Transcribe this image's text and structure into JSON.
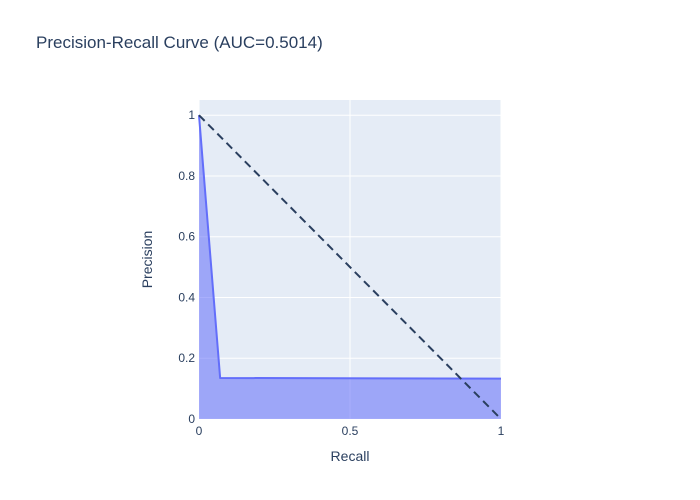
{
  "chart_data": {
    "type": "area",
    "title": "Precision-Recall Curve (AUC=0.5014)",
    "xlabel": "Recall",
    "ylabel": "Precision",
    "xlim": [
      0,
      1
    ],
    "ylim": [
      0,
      1.05
    ],
    "x_ticks": [
      {
        "value": 0,
        "label": "0"
      },
      {
        "value": 0.5,
        "label": "0.5"
      },
      {
        "value": 1,
        "label": "1"
      }
    ],
    "y_ticks": [
      {
        "value": 0,
        "label": "0"
      },
      {
        "value": 0.2,
        "label": "0.2"
      },
      {
        "value": 0.4,
        "label": "0.4"
      },
      {
        "value": 0.6,
        "label": "0.6"
      },
      {
        "value": 0.8,
        "label": "0.8"
      },
      {
        "value": 1,
        "label": "1"
      }
    ],
    "grid": true,
    "series": [
      {
        "style": "filled-area",
        "color": "#636efa",
        "fill_color": "rgba(99,110,250,0.55)",
        "x": [
          0,
          0.07,
          1
        ],
        "y": [
          1,
          0.135,
          0.133
        ]
      },
      {
        "style": "dashed",
        "color": "#2a3f5f",
        "x": [
          0,
          1
        ],
        "y": [
          1,
          0
        ]
      }
    ]
  },
  "colors": {
    "plot_background": "#e5ecf6",
    "grid": "#ffffff",
    "text": "#2a3f5f"
  }
}
